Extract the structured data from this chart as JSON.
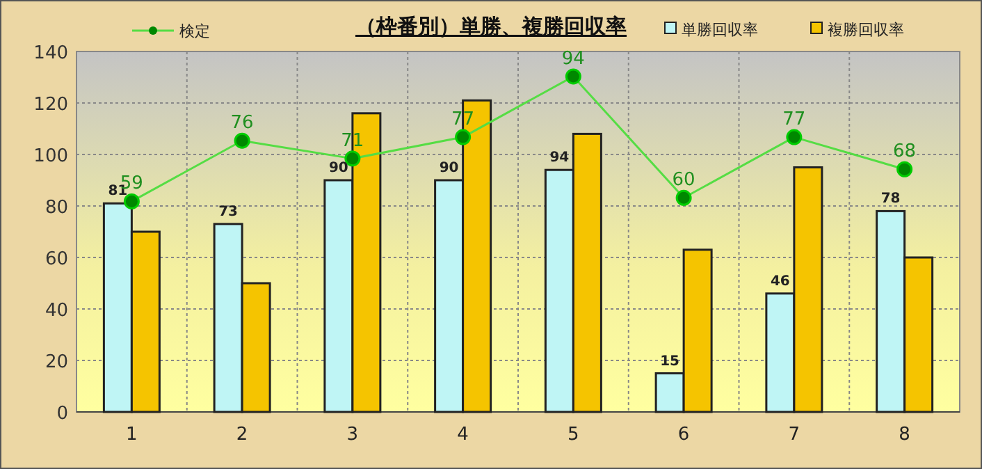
{
  "chart_data": {
    "type": "bar",
    "title": "（枠番別）単勝、複勝回収率",
    "categories": [
      "1",
      "2",
      "3",
      "4",
      "5",
      "6",
      "7",
      "8"
    ],
    "series": [
      {
        "name": "単勝回収率",
        "color": "#bff5f5",
        "values": [
          81,
          73,
          90,
          90,
          94,
          15,
          46,
          78
        ],
        "value_labels": [
          "81",
          "73",
          "90",
          "90",
          "94",
          "15",
          "46",
          "78"
        ]
      },
      {
        "name": "複勝回収率",
        "color": "#f5c400",
        "values": [
          70,
          50,
          116,
          121,
          108,
          63,
          95,
          60
        ]
      },
      {
        "name": "検定",
        "type": "line",
        "axis": "y2",
        "color": "#55dd44",
        "marker": "circle",
        "values": [
          59,
          76,
          71,
          77,
          94,
          60,
          77,
          68
        ],
        "value_labels": [
          "59",
          "76",
          "71",
          "77",
          "94",
          "60",
          "77",
          "68"
        ]
      }
    ],
    "ylim": [
      0,
      140
    ],
    "yticks": [
      0,
      20,
      40,
      60,
      80,
      100,
      120,
      140
    ],
    "y2lim": [
      0,
      101
    ],
    "tick_labels": "xy",
    "grid": true,
    "legend": "top"
  }
}
